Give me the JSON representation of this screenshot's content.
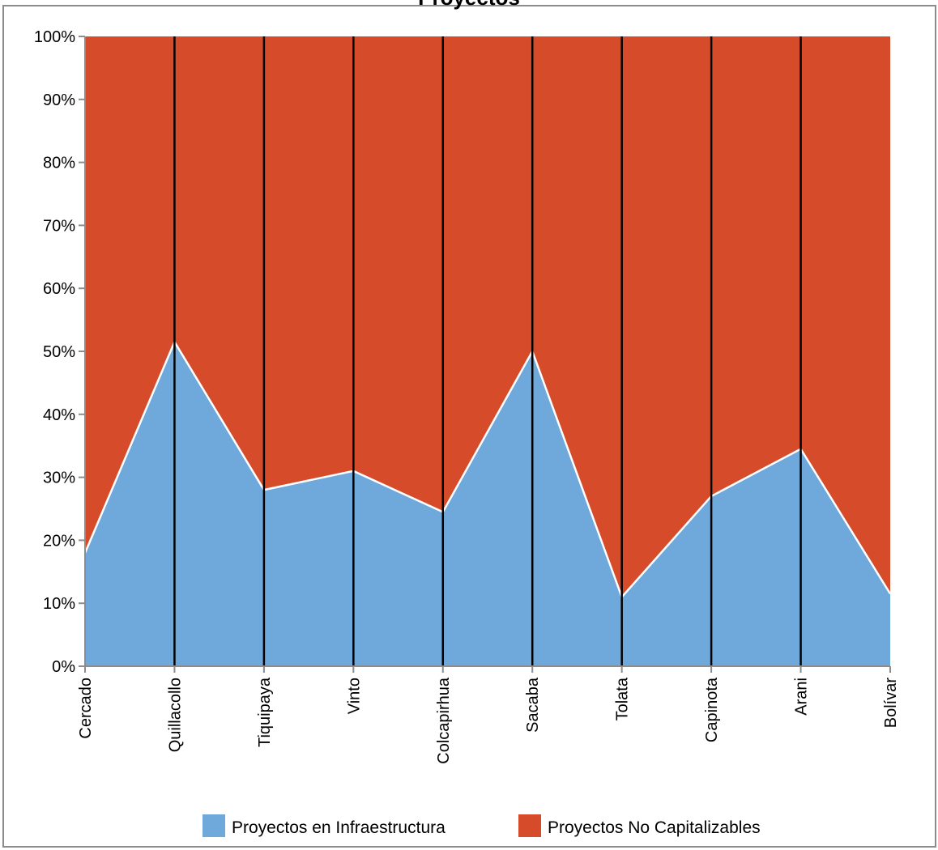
{
  "chart_data": {
    "type": "area",
    "stacked": "percent",
    "title": "Proyectos",
    "categories": [
      "Cercado",
      "Quillacollo",
      "Tiquipaya",
      "Vinto",
      "Colcapirhua",
      "Sacaba",
      "Tolata",
      "Capinota",
      "Arani",
      "Bolívar"
    ],
    "series": [
      {
        "name": "Proyectos en Infraestructura",
        "color": "#6fa9dc",
        "values": [
          18,
          51.5,
          28,
          31,
          24.5,
          50,
          11,
          27,
          34.5,
          11.5
        ]
      },
      {
        "name": "Proyectos No Capitalizables",
        "color": "#d64b29",
        "values": [
          82,
          48.5,
          72,
          69,
          75.5,
          50,
          89,
          73,
          65.5,
          88.5
        ]
      }
    ],
    "y_ticks": [
      "0%",
      "10%",
      "20%",
      "30%",
      "40%",
      "50%",
      "60%",
      "70%",
      "80%",
      "90%",
      "100%"
    ],
    "ylim": [
      0,
      100
    ],
    "grid": false,
    "legend_position": "bottom"
  }
}
